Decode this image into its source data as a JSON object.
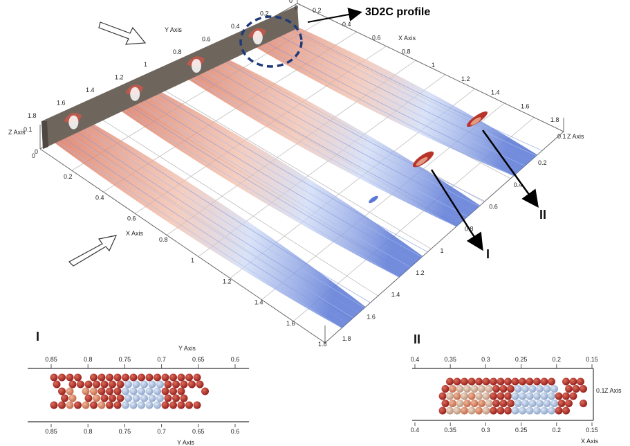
{
  "main": {
    "annotation": "3D2C profile",
    "arrow_label_1": "I",
    "arrow_label_2": "II",
    "y_axis_name": "Y Axis",
    "x_axis_name": "X Axis",
    "z_axis_name": "Z Axis",
    "y_ticks": [
      "1.8",
      "1.6",
      "1.4",
      "1.2",
      "1",
      "0.8",
      "0.6",
      "0.4",
      "0.2",
      "0"
    ],
    "x_ticks_top": [
      "0.2",
      "0.4",
      "0.6",
      "0.8",
      "1",
      "1.2",
      "1.4",
      "1.6",
      "1.8"
    ],
    "x_ticks_left": [
      "0",
      "0.2",
      "0.4",
      "0.6",
      "0.8",
      "1",
      "1.2",
      "1.4",
      "1.6",
      "1.8"
    ],
    "y_ticks_right": [
      "0.2",
      "0.4",
      "0.6",
      "0.8",
      "1",
      "1.2",
      "1.4",
      "1.6",
      "1.8"
    ],
    "z_tick": "0.1",
    "zero_top": "0",
    "zero_left": "0"
  },
  "inset1": {
    "label": "I",
    "axis_name": "Y Axis",
    "ticks": [
      "0.85",
      "0.8",
      "0.75",
      "0.7",
      "0.65",
      "0.6"
    ]
  },
  "inset2": {
    "label": "II",
    "axis_name_bottom": "X Axis",
    "axis_name_right": "Z Axis",
    "ticks": [
      "0.4",
      "0.35",
      "0.3",
      "0.25",
      "0.2",
      "0.15"
    ],
    "z_tick": "0.1"
  },
  "colors": {
    "wall": "#6e655d",
    "warm": "#d9735a",
    "cool": "#5a78d6",
    "dashed_circle": "#1f3a78"
  }
}
